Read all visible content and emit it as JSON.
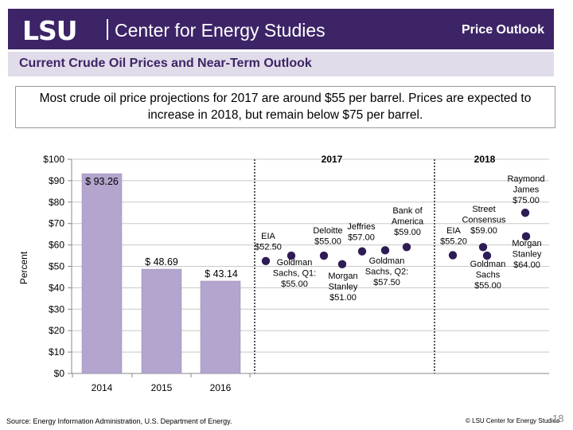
{
  "header": {
    "logo": "LSU",
    "center_name": "Center for Energy Studies",
    "section": "Price Outlook",
    "subtitle": "Current Crude Oil Prices and Near-Term Outlook"
  },
  "callout": "Most crude oil price projections for 2017 are around $55 per barrel.  Prices are expected to increase in 2018, but remain below $75 per barrel.",
  "footer": {
    "source": "Source: Energy Information Administration, U.S. Department of Energy.",
    "copyright": "© LSU Center for Energy Studies",
    "page": "18"
  },
  "colors": {
    "header_bg": "#3d2467",
    "bar": "#b3a5cd",
    "point": "#2e1c55",
    "subbar": "#e1dce9"
  },
  "chart_data": {
    "type": "bar",
    "ylabel": "Percent",
    "ylim": [
      0,
      100
    ],
    "yticks": [
      "$0",
      "$10",
      "$20",
      "$30",
      "$40",
      "$50",
      "$60",
      "$70",
      "$80",
      "$90",
      "$100"
    ],
    "grid": true,
    "categories": [
      "2014",
      "2015",
      "2016"
    ],
    "values": [
      93.26,
      48.69,
      43.14
    ],
    "value_labels": [
      "$ 93.26",
      "$ 48.69",
      "$ 43.14"
    ],
    "forecast_groups": [
      {
        "label": "2017",
        "points": [
          {
            "lines": [
              "EIA",
              "$52.50"
            ],
            "value": 52.5
          },
          {
            "lines": [
              "Goldman",
              "Sachs, Q1:",
              "$55.00"
            ],
            "value": 55
          },
          {
            "lines": [
              "Deloitte",
              "$55.00"
            ],
            "value": 55
          },
          {
            "lines": [
              "Morgan",
              "Stanley",
              "$51.00"
            ],
            "value": 51
          },
          {
            "lines": [
              "Jeffries",
              "$57.00"
            ],
            "value": 57
          },
          {
            "lines": [
              "Goldman",
              "Sachs, Q2:",
              "$57.50"
            ],
            "value": 57.5
          },
          {
            "lines": [
              "Bank of",
              "America",
              "$59.00"
            ],
            "value": 59
          }
        ]
      },
      {
        "label": "2018",
        "points": [
          {
            "lines": [
              "EIA",
              "$55.20"
            ],
            "value": 55.2
          },
          {
            "lines": [
              "Street",
              "Consensus",
              "$59.00"
            ],
            "value": 59
          },
          {
            "lines": [
              "Goldman",
              "Sachs",
              "$55.00"
            ],
            "value": 55
          },
          {
            "lines": [
              "Raymond",
              "James",
              "$75.00"
            ],
            "value": 75
          },
          {
            "lines": [
              "Morgan",
              "Stanley",
              "$64.00"
            ],
            "value": 64
          }
        ]
      }
    ]
  }
}
